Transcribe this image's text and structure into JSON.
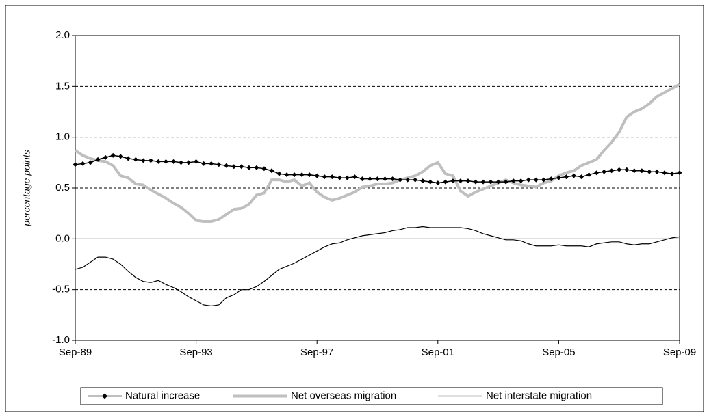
{
  "chart_data": {
    "type": "line",
    "y_label": "percentage points",
    "categories": [
      "Sep-89",
      null,
      null,
      null,
      null,
      null,
      null,
      null,
      null,
      null,
      null,
      null,
      null,
      null,
      null,
      null,
      "Sep-93",
      null,
      null,
      null,
      null,
      null,
      null,
      null,
      null,
      null,
      null,
      null,
      null,
      null,
      null,
      null,
      "Sep-97",
      null,
      null,
      null,
      null,
      null,
      null,
      null,
      null,
      null,
      null,
      null,
      null,
      null,
      null,
      null,
      "Sep-01",
      null,
      null,
      null,
      null,
      null,
      null,
      null,
      null,
      null,
      null,
      null,
      null,
      null,
      null,
      null,
      "Sep-05",
      null,
      null,
      null,
      null,
      null,
      null,
      null,
      null,
      null,
      null,
      null,
      null,
      null,
      null,
      null,
      "Sep-09"
    ],
    "series": [
      {
        "name": "Natural increase",
        "color": "#000000",
        "marker": "diamond",
        "values": [
          0.73,
          0.74,
          0.75,
          0.78,
          0.8,
          0.82,
          0.81,
          0.79,
          0.78,
          0.77,
          0.77,
          0.76,
          0.76,
          0.76,
          0.75,
          0.75,
          0.76,
          0.74,
          0.74,
          0.73,
          0.72,
          0.71,
          0.71,
          0.7,
          0.7,
          0.69,
          0.67,
          0.64,
          0.63,
          0.63,
          0.63,
          0.63,
          0.62,
          0.61,
          0.61,
          0.6,
          0.6,
          0.61,
          0.59,
          0.59,
          0.59,
          0.59,
          0.59,
          0.58,
          0.58,
          0.58,
          0.57,
          0.56,
          0.55,
          0.56,
          0.57,
          0.57,
          0.57,
          0.56,
          0.56,
          0.56,
          0.56,
          0.56,
          0.57,
          0.57,
          0.58,
          0.58,
          0.58,
          0.59,
          0.6,
          0.61,
          0.62,
          0.61,
          0.63,
          0.65,
          0.66,
          0.67,
          0.68,
          0.68,
          0.67,
          0.67,
          0.66,
          0.66,
          0.65,
          0.64,
          0.65
        ]
      },
      {
        "name": "Net overseas migration",
        "color": "#bfbfbf",
        "marker": "none",
        "values": [
          0.87,
          0.82,
          0.79,
          0.77,
          0.76,
          0.72,
          0.62,
          0.6,
          0.54,
          0.53,
          0.48,
          0.44,
          0.4,
          0.35,
          0.31,
          0.25,
          0.18,
          0.17,
          0.17,
          0.19,
          0.24,
          0.29,
          0.3,
          0.34,
          0.43,
          0.45,
          0.58,
          0.58,
          0.56,
          0.58,
          0.52,
          0.55,
          0.46,
          0.41,
          0.38,
          0.4,
          0.43,
          0.46,
          0.51,
          0.52,
          0.54,
          0.54,
          0.55,
          0.58,
          0.6,
          0.62,
          0.66,
          0.72,
          0.75,
          0.64,
          0.62,
          0.47,
          0.42,
          0.46,
          0.49,
          0.52,
          0.55,
          0.58,
          0.55,
          0.53,
          0.52,
          0.51,
          0.55,
          0.57,
          0.62,
          0.65,
          0.67,
          0.72,
          0.75,
          0.78,
          0.87,
          0.95,
          1.05,
          1.2,
          1.25,
          1.28,
          1.33,
          1.4,
          1.44,
          1.48,
          1.52
        ]
      },
      {
        "name": "Net interstate migration",
        "color": "#000000",
        "marker": "none",
        "values": [
          -0.3,
          -0.28,
          -0.23,
          -0.18,
          -0.18,
          -0.2,
          -0.25,
          -0.32,
          -0.38,
          -0.42,
          -0.43,
          -0.41,
          -0.45,
          -0.48,
          -0.52,
          -0.57,
          -0.61,
          -0.65,
          -0.66,
          -0.65,
          -0.58,
          -0.55,
          -0.5,
          -0.5,
          -0.47,
          -0.42,
          -0.36,
          -0.3,
          -0.27,
          -0.24,
          -0.2,
          -0.16,
          -0.12,
          -0.08,
          -0.05,
          -0.04,
          -0.01,
          0.01,
          0.03,
          0.04,
          0.05,
          0.06,
          0.08,
          0.09,
          0.11,
          0.11,
          0.12,
          0.11,
          0.11,
          0.11,
          0.11,
          0.11,
          0.1,
          0.08,
          0.05,
          0.03,
          0.01,
          -0.01,
          -0.01,
          -0.02,
          -0.05,
          -0.07,
          -0.07,
          -0.07,
          -0.06,
          -0.07,
          -0.07,
          -0.07,
          -0.08,
          -0.05,
          -0.04,
          -0.03,
          -0.03,
          -0.05,
          -0.06,
          -0.05,
          -0.05,
          -0.03,
          -0.01,
          0.01,
          0.02
        ]
      }
    ],
    "ylim": [
      -1,
      2
    ],
    "yticks": [
      {
        "value": -1,
        "label": "-1.0"
      },
      -0.5,
      {
        "value": 0,
        "label": "0.0"
      },
      0.5,
      {
        "value": 1,
        "label": "1.0"
      },
      1.5,
      {
        "value": 2,
        "label": "2.0"
      }
    ],
    "grid": true,
    "legend": "bottom"
  }
}
